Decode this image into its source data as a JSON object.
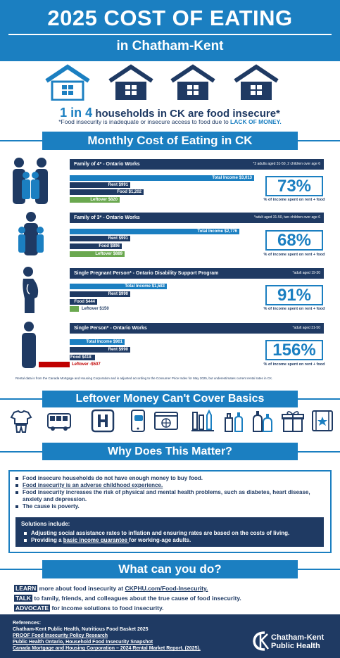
{
  "header": {
    "title": "2025 COST OF EATING",
    "subtitle": "in Chatham-Kent"
  },
  "stat": {
    "highlight": "1 in 4",
    "text": " households in CK are food insecure*",
    "note_prefix": "*Food insecurity is inadequate or insecure access to food due to ",
    "note_highlight": "LACK OF MONEY."
  },
  "section_titles": {
    "monthly": "Monthly Cost of Eating in CK",
    "basics": "Leftover Money Can't Cover Basics",
    "why": "Why Does This Matter?",
    "do": "What can you do?"
  },
  "families": [
    {
      "title": "Family of 4* - Ontario Works",
      "note": "*2 adults aged 31-50, 2 children over age 6",
      "total": "Total Income $3,013",
      "rent": "Rent $991",
      "food": "Food $1,202",
      "leftover": "Leftover $820",
      "percent": "73%",
      "percent_caption": "% of income spent on rent + food",
      "values": {
        "total": 3013,
        "rent": 991,
        "food": 1202,
        "leftover": 820
      }
    },
    {
      "title": "Family of 3* - Ontario Works",
      "note": "*adult aged 31-50, two children over age 6",
      "total": "Total Income $2,776",
      "rent": "Rent $991",
      "food": "Food $896",
      "leftover": "Leftover $889",
      "percent": "68%",
      "percent_caption": "% of income spent on rent + food",
      "values": {
        "total": 2776,
        "rent": 991,
        "food": 896,
        "leftover": 889
      }
    },
    {
      "title": "Single Pregnant Person* - Ontario Disability Support Program",
      "note": "*adult aged 19-30",
      "total": "Total Income $1,583",
      "rent": "Rent $990",
      "food": "Food $444",
      "leftover": "Leftover $150",
      "percent": "91%",
      "percent_caption": "% of income spent on rent + food",
      "values": {
        "total": 1583,
        "rent": 990,
        "food": 444,
        "leftover": 150
      }
    },
    {
      "title": "Single Person* - Ontario Works",
      "note": "*adult aged 31-50",
      "total": "Total Income $901",
      "rent": "Rent $990",
      "food": "Food $418",
      "leftover": "Leftover -$507",
      "percent": "156%",
      "percent_caption": "% of income spent on rent + food",
      "values": {
        "total": 901,
        "rent": 990,
        "food": 418,
        "leftover": -507
      }
    }
  ],
  "disclaimer": "Rental data is from the Canada Mortgage and Housing Corporation and is adjusted according to the Consumer Price Index for May 2025, but underestimates current rental rates in CK.",
  "basics_icons": [
    "clothing-icon",
    "bus-icon",
    "hospital-icon",
    "phone-icon",
    "internet-icon",
    "school-supplies-icon",
    "cleaning-supplies-icon",
    "toiletries-icon",
    "gift-icon",
    "entertainment-icon"
  ],
  "why": {
    "items": [
      "Food insecure households do not have enough money to buy food.",
      "Food insecurity is an adverse childhood experience.",
      "Food insecurity increases the risk of physical and mental health problems, such as diabetes, heart disease, anxiety and depression.",
      "The cause is poverty."
    ],
    "solutions_title": "Solutions include:",
    "solution_1": "Adjusting social assistance rates to inflation and ensuring rates are based on the costs of living.",
    "solution_2_prefix": "Providing a ",
    "solution_2_link": "basic income guarantee ",
    "solution_2_suffix": "for working-age adults."
  },
  "actions": [
    {
      "tag": "LEARN",
      "text": " more about food insecurity at ",
      "link": "CKPHU.com/Food-Insecurity."
    },
    {
      "tag": "TALK",
      "text": " to family, friends, and colleagues about the true cause of food insecurity.",
      "link": ""
    },
    {
      "tag": "ADVOCATE",
      "text": " for income solutions to food insecurity.",
      "link": ""
    }
  ],
  "references": {
    "title": "References:",
    "items": [
      "Chatham-Kent Public Health, Nutritious Food Basket 2025",
      "PROOF Food Insecurity Policy Research",
      "Public Health Ontario, Household Food Insecurity Snapshot",
      "Canada Mortgage and Housing Corporation – 2024 Rental Market Report. (2025)."
    ]
  },
  "logo": {
    "line1": "Chatham-Kent",
    "line2": "Public Health"
  },
  "colors": {
    "blue": "#1b7fc1",
    "navy": "#1f3a63",
    "green": "#6aa84f",
    "red": "#c00000"
  }
}
